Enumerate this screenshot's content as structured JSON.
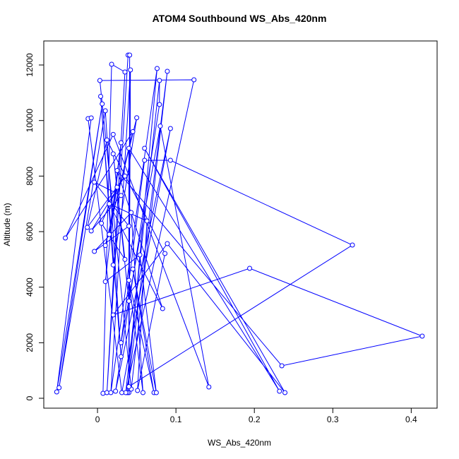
{
  "chart_data": {
    "type": "line",
    "title": "ATOM4 Southbound WS_Abs_420nm",
    "xlabel": "WS_Abs_420nm",
    "ylabel": "Altitude (m)",
    "color": "#0000ff",
    "markers": true,
    "xlim": [
      -0.0685,
      0.433
    ],
    "ylim": [
      -356,
      12865
    ],
    "xticks": [
      0,
      0.1,
      0.2,
      0.3,
      0.4
    ],
    "yticks": [
      0,
      2000,
      4000,
      6000,
      8000,
      10000,
      12000
    ],
    "x": [
      0.007,
      0.018,
      0.035,
      0.012,
      0.039,
      0.041,
      0.04,
      0.042,
      0.017,
      0.076,
      0.038,
      0.089,
      0.043,
      0.003,
      0.123,
      0.036,
      0.079,
      0.079,
      0.023,
      0.093,
      0.031,
      -0.012,
      -0.008,
      -0.052,
      0.006,
      -0.049,
      0.01,
      0.03,
      0.004,
      0.02,
      0.05,
      0.01,
      0.045,
      -0.041,
      0.02,
      0.142,
      0.08,
      0.03,
      0.06,
      0.093,
      0.325,
      0.04,
      0.04,
      0.232,
      0.06,
      0.239,
      0.089,
      0.02,
      0.194,
      0.414,
      0.235,
      0.025,
      0.083,
      0.015,
      0.063,
      0.051,
      0.086,
      0.012,
      -0.013,
      0.035,
      -0.008,
      0.03,
      -0.004,
      0.04,
      -0.004,
      0.043,
      0.058,
      0.04,
      0.072,
      0.045,
      0.075,
      0.054,
      0.01,
      0.03,
      0.015,
      0.025,
      0.005,
      0.035,
      0.02,
      0.04
    ],
    "y": [
      178,
      12026,
      11747,
      203,
      12357,
      12357,
      203,
      11823,
      203,
      11874,
      203,
      11772,
      330,
      11441,
      11467,
      203,
      11441,
      10577,
      254,
      9712,
      203,
      10068,
      10094,
      229,
      10600,
      381,
      10350,
      1500,
      10870,
      4800,
      10100,
      5500,
      9600,
      5772,
      9500,
      407,
      9800,
      2000,
      8568,
      8568,
      5517,
      420,
      9000,
      254,
      9000,
      203,
      5568,
      3000,
      4678,
      2237,
      1170,
      8200,
      3229,
      7000,
      6382,
      280,
      5212,
      9300,
      6153,
      8000,
      6026,
      7300,
      7780,
      6200,
      5288,
      6687,
      203,
      4246,
      203,
      4653,
      203,
      5161,
      4200,
      9200,
      5900,
      7600,
      6300,
      5000,
      8800,
      3500
    ]
  }
}
